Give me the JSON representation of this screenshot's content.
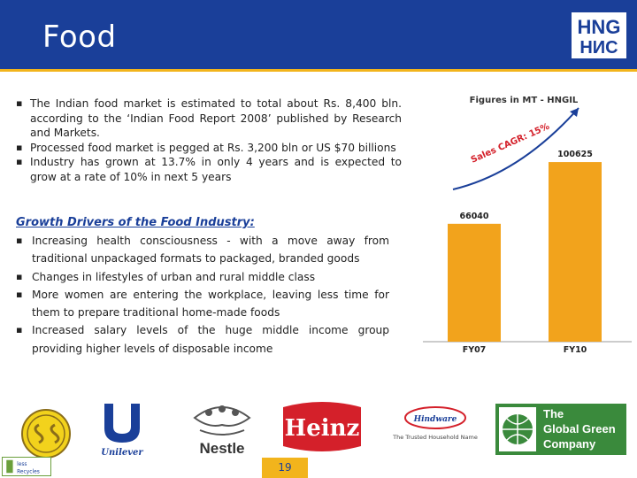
{
  "header": {
    "title": "Food",
    "logo_top": "HNG",
    "logo_bottom": "НИС"
  },
  "intro_bullets": [
    "The Indian food market is estimated to total about Rs. 8,400 bln. according to the ‘Indian Food Report 2008’ published by Research and Markets.",
    "Processed food market is pegged at Rs. 3,200 bln or US $70 billions",
    "Industry has grown at 13.7% in only 4 years and is expected to grow at a rate of 10% in next 5 years"
  ],
  "drivers": {
    "title": "Growth Drivers of the Food Industry:",
    "items": [
      "Increasing health consciousness - with a move away from traditional unpackaged formats to packaged, branded goods",
      "Changes in lifestyles of urban and rural middle class",
      "More women are entering the workplace, leaving less time for them to prepare traditional home-made foods",
      "Increased salary levels of the huge middle income group providing higher levels of disposable income"
    ]
  },
  "chart_data": {
    "type": "bar",
    "title": "Figures in MT - HNGIL",
    "categories": [
      "FY07",
      "FY10"
    ],
    "values": [
      66040,
      100625
    ],
    "value_labels": [
      "66040",
      "100625"
    ],
    "annotation": "Sales CAGR: 15%",
    "ylim": [
      0,
      120000
    ],
    "bar_color": "#f2a31c",
    "grid": false
  },
  "logos": {
    "unilever": "Unilever",
    "nestle": "Nestle",
    "heinz": "Heinz",
    "hindware_name": "Hindware",
    "hindware_tagline": "The Trusted Household Name",
    "global_green": [
      "The",
      "Global Green",
      "Company"
    ]
  },
  "footer": {
    "page_number": "19",
    "left_logo_line1": "less",
    "left_logo_line2": "Recycles"
  },
  "colors": {
    "header_blue": "#1a3f99",
    "accent_yellow": "#f2b41c",
    "heinz_red": "#d4202a",
    "global_green": "#3a8a3c"
  }
}
